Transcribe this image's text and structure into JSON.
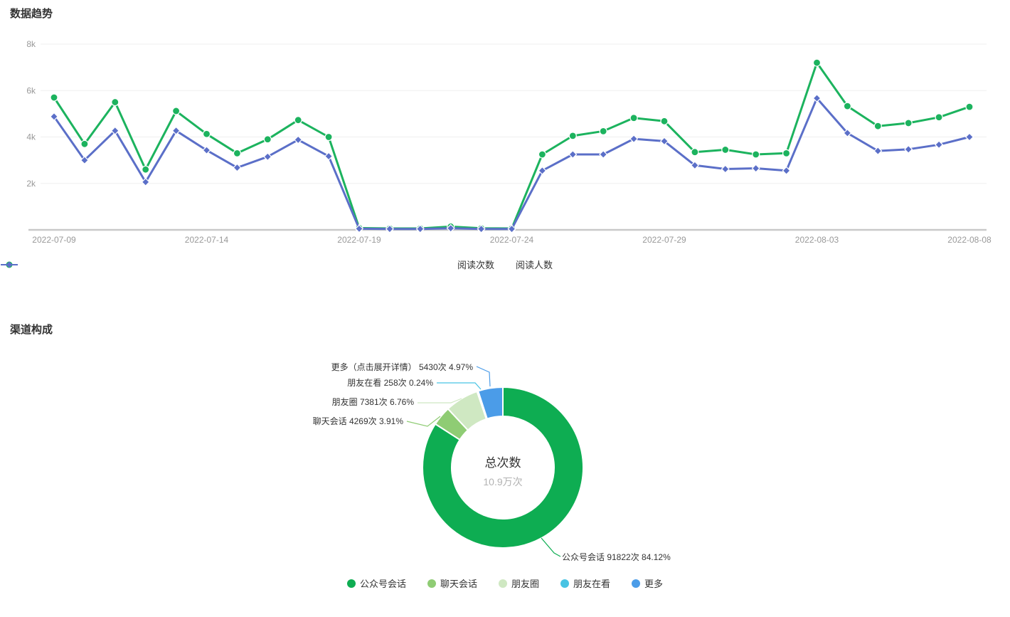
{
  "trend_section": {
    "title": "数据趋势"
  },
  "channel_section": {
    "title": "渠道构成",
    "center_label": "总次数",
    "center_value": "10.9万次"
  },
  "chart_data": [
    {
      "type": "line",
      "title": "数据趋势",
      "x": [
        "2022-07-09",
        "2022-07-10",
        "2022-07-11",
        "2022-07-12",
        "2022-07-13",
        "2022-07-14",
        "2022-07-15",
        "2022-07-16",
        "2022-07-17",
        "2022-07-18",
        "2022-07-19",
        "2022-07-20",
        "2022-07-21",
        "2022-07-22",
        "2022-07-23",
        "2022-07-24",
        "2022-07-25",
        "2022-07-26",
        "2022-07-27",
        "2022-07-28",
        "2022-07-29",
        "2022-07-30",
        "2022-07-31",
        "2022-08-01",
        "2022-08-02",
        "2022-08-03",
        "2022-08-04",
        "2022-08-05",
        "2022-08-06",
        "2022-08-07",
        "2022-08-08"
      ],
      "x_tick_labels": [
        "2022-07-09",
        "2022-07-14",
        "2022-07-19",
        "2022-07-24",
        "2022-07-29",
        "2022-08-03",
        "2022-08-08"
      ],
      "x_tick_indices": [
        0,
        5,
        10,
        15,
        20,
        25,
        30
      ],
      "ylim": [
        0,
        8000
      ],
      "y_ticks": [
        2000,
        4000,
        6000,
        8000
      ],
      "y_tick_labels": [
        "2k",
        "4k",
        "6k",
        "8k"
      ],
      "grid": true,
      "legend_position": "bottom",
      "series": [
        {
          "name": "阅读次数",
          "color": "#1cb35e",
          "marker": "circle",
          "values": [
            5700,
            3700,
            5500,
            2600,
            5120,
            4130,
            3300,
            3900,
            4730,
            4000,
            80,
            60,
            60,
            140,
            70,
            60,
            3250,
            4050,
            4250,
            4820,
            4680,
            3350,
            3450,
            3250,
            3300,
            7200,
            5330,
            4470,
            4600,
            4850,
            5300
          ]
        },
        {
          "name": "阅读人数",
          "color": "#5b6fc8",
          "marker": "diamond",
          "values": [
            4880,
            3000,
            4270,
            2060,
            4270,
            3430,
            2680,
            3150,
            3880,
            3170,
            50,
            40,
            40,
            70,
            40,
            40,
            2550,
            3250,
            3250,
            3920,
            3820,
            2780,
            2620,
            2650,
            2550,
            5670,
            4170,
            3400,
            3470,
            3670,
            4000
          ]
        }
      ]
    },
    {
      "type": "pie",
      "title": "渠道构成",
      "donut": true,
      "center_label": "总次数",
      "center_value": "10.9万次",
      "total_label": "总次数 10.9万次",
      "slices": [
        {
          "name": "公众号会话",
          "count": 91822,
          "count_label": "91822次",
          "percent": 84.12,
          "color": "#0ead52",
          "label": "公众号会话 91822次 84.12%"
        },
        {
          "name": "聊天会话",
          "count": 4269,
          "count_label": "4269次",
          "percent": 3.91,
          "color": "#8fcc74",
          "label": "聊天会话 4269次 3.91%"
        },
        {
          "name": "朋友圈",
          "count": 7381,
          "count_label": "7381次",
          "percent": 6.76,
          "color": "#cfe8c2",
          "label": "朋友圈 7381次 6.76%"
        },
        {
          "name": "朋友在看",
          "count": 258,
          "count_label": "258次",
          "percent": 0.24,
          "color": "#48c3e3",
          "label": "朋友在看 258次 0.24%"
        },
        {
          "name": "更多",
          "count": 5430,
          "count_label": "5430次",
          "percent": 4.97,
          "color": "#4b9ce8",
          "label": "更多（点击展开详情） 5430次 4.97%"
        }
      ],
      "legend_position": "bottom"
    }
  ]
}
